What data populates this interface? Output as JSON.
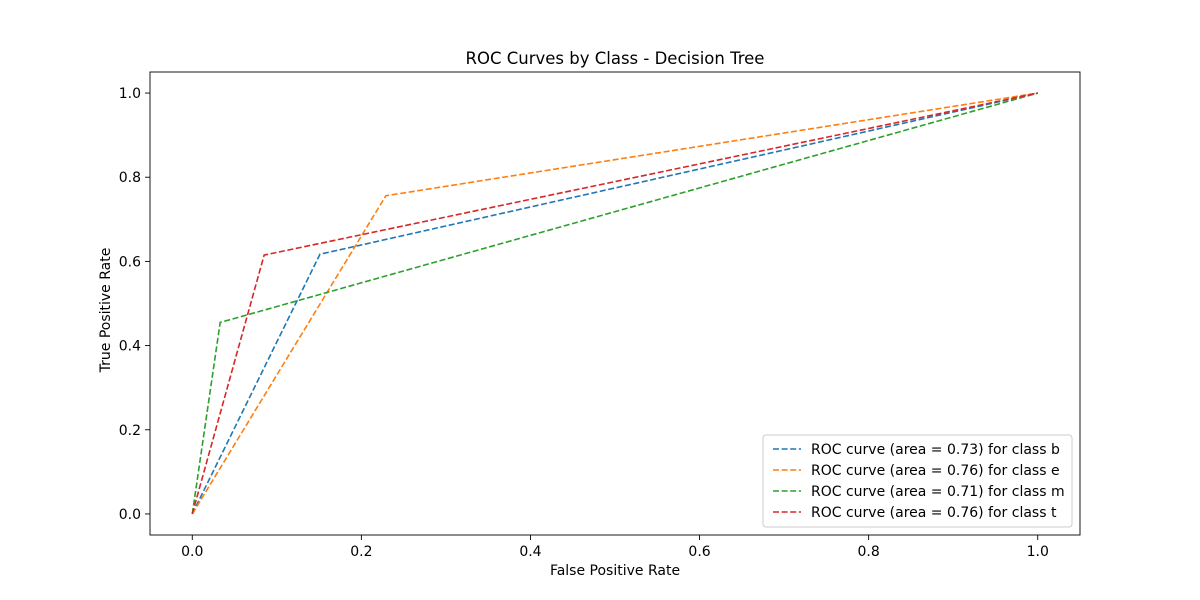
{
  "chart_data": {
    "type": "line",
    "title": "ROC Curves by Class - Decision Tree",
    "xlabel": "False Positive Rate",
    "ylabel": "True Positive Rate",
    "xlim": [
      -0.05,
      1.05
    ],
    "ylim": [
      -0.05,
      1.05
    ],
    "xticks": [
      "0.0",
      "0.2",
      "0.4",
      "0.6",
      "0.8",
      "1.0"
    ],
    "yticks": [
      "0.0",
      "0.2",
      "0.4",
      "0.6",
      "0.8",
      "1.0"
    ],
    "grid": false,
    "legend_position": "lower-right",
    "line_style": "dashed",
    "series": [
      {
        "name": "ROC curve (area = 0.73) for class b",
        "color": "#1f77b4",
        "x": [
          0.0,
          0.151,
          1.0
        ],
        "y": [
          0.0,
          0.617,
          1.0
        ]
      },
      {
        "name": "ROC curve (area = 0.76) for class e",
        "color": "#ff7f0e",
        "x": [
          0.0,
          0.229,
          1.0
        ],
        "y": [
          0.0,
          0.756,
          1.0
        ]
      },
      {
        "name": "ROC curve (area = 0.71) for class m",
        "color": "#2ca02c",
        "x": [
          0.0,
          0.033,
          1.0
        ],
        "y": [
          0.0,
          0.455,
          1.0
        ]
      },
      {
        "name": "ROC curve (area = 0.76) for class t",
        "color": "#d62728",
        "x": [
          0.0,
          0.085,
          1.0
        ],
        "y": [
          0.0,
          0.615,
          1.0
        ]
      }
    ]
  }
}
